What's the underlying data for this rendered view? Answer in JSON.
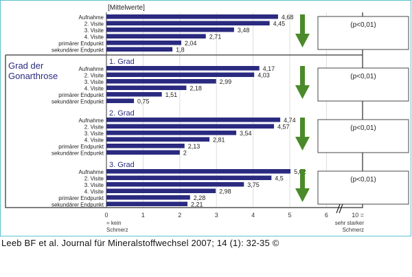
{
  "chart_data": {
    "type": "bar",
    "orientation": "horizontal",
    "unit_label": "[Mittelwerte]",
    "categories": [
      "Aufnahme",
      "2. Visite",
      "3. Visite",
      "4. Visite",
      "primärer Endpunkt",
      "sekundärer Endpunkt"
    ],
    "groups": [
      {
        "title": "",
        "values": [
          4.68,
          4.45,
          3.48,
          2.71,
          2.04,
          1.8
        ],
        "labels": [
          "4,68",
          "4,45",
          "3,48",
          "2,71",
          "2,04",
          "1,8"
        ],
        "significance": "(p<0,01)"
      },
      {
        "title": "1. Grad",
        "values": [
          4.17,
          4.03,
          2.99,
          2.18,
          1.51,
          0.75
        ],
        "labels": [
          "4,17",
          "4,03",
          "2,99",
          "2,18",
          "1,51",
          "0,75"
        ],
        "significance": "(p<0,01)"
      },
      {
        "title": "2. Grad",
        "values": [
          4.74,
          4.57,
          3.54,
          2.81,
          2.13,
          2.0
        ],
        "labels": [
          "4,74",
          "4,57",
          "3,54",
          "2,81",
          "2,13",
          "2"
        ],
        "significance": "(p<0,01)"
      },
      {
        "title": "3. Grad",
        "values": [
          5.02,
          4.5,
          3.75,
          2.98,
          2.28,
          2.21
        ],
        "labels": [
          "5,02",
          "4,5",
          "3,75",
          "2,98",
          "2,28",
          "2,21"
        ],
        "significance": "(p<0,01)"
      }
    ],
    "group_frame_label": "Grad der Gonarthrose",
    "x_ticks": [
      "0",
      "1",
      "2",
      "3",
      "4",
      "5",
      "6"
    ],
    "xlim": [
      0,
      6.5
    ],
    "axis_break_end": {
      "tick": "10 =",
      "label": "sehr starker Schmerz"
    },
    "axis_start_label": "= kein Schmerz",
    "grid": true,
    "colors": {
      "bar": "#2a2a80",
      "arrow": "#4a8a2a",
      "frame": "#5bc0d0",
      "title": "#2a2a80"
    }
  },
  "citation": "Leeb BF et al. Journal für Mineralstoffwechsel 2007; 14 (1): 32-35 ©"
}
